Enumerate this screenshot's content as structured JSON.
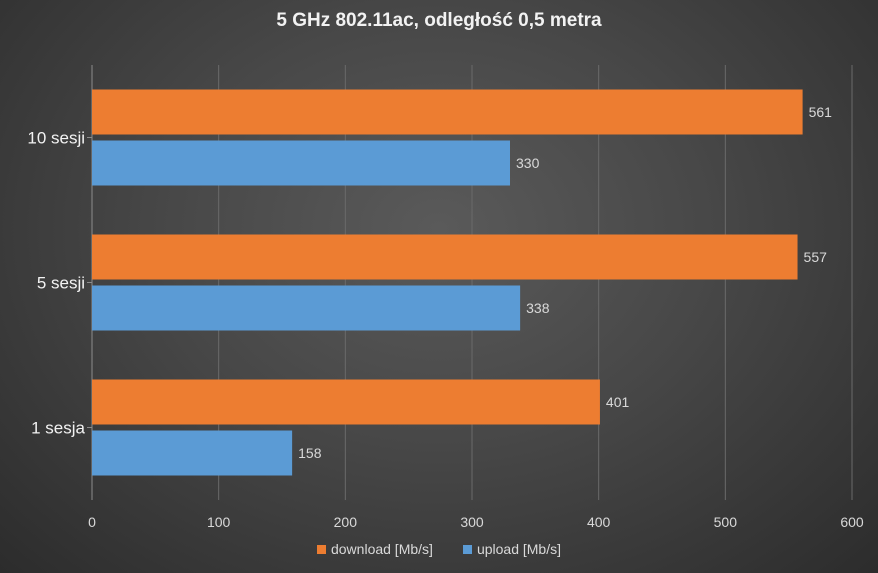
{
  "chart_data": {
    "type": "bar",
    "orientation": "horizontal",
    "title": "5 GHz 802.11ac, odległość 0,5 metra",
    "categories": [
      "10 sesji",
      "5 sesji",
      "1 sesja"
    ],
    "series": [
      {
        "name": "download [Mb/s]",
        "color": "#ed7d31",
        "values": [
          561,
          557,
          401
        ]
      },
      {
        "name": "upload [Mb/s]",
        "color": "#5b9bd5",
        "values": [
          330,
          338,
          158
        ]
      }
    ],
    "xlim": [
      0,
      600
    ],
    "xticks": [
      0,
      100,
      200,
      300,
      400,
      500,
      600
    ],
    "grid": true,
    "legend_position": "bottom"
  }
}
